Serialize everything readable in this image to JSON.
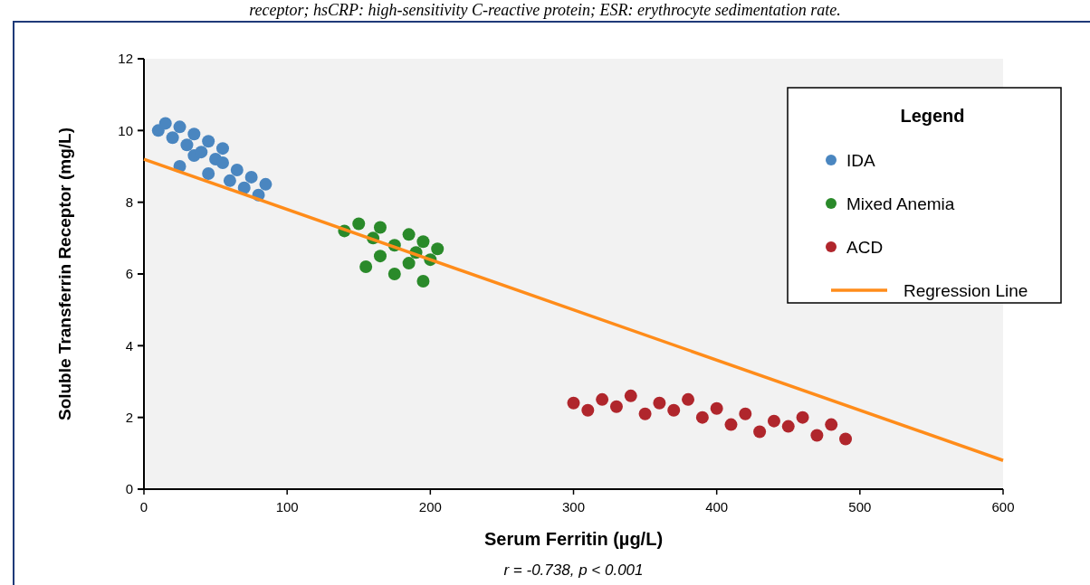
{
  "chart_data": {
    "type": "scatter",
    "xlabel": "Serum Ferritin (µg/L)",
    "ylabel": "Soluble Transferrin Receptor (mg/L)",
    "legend_title": "Legend",
    "annotations": [
      "r = -0.738, p < 0.001",
      "receptor; hsCRP: high-sensitivity C-reactive protein; ESR: erythrocyte sedimentation rate."
    ],
    "xlim": [
      0,
      600
    ],
    "xticks": [
      0,
      100,
      200,
      300,
      400,
      500,
      600
    ],
    "ylim": [
      0,
      12
    ],
    "yticks": [
      0,
      2,
      4,
      6,
      8,
      10,
      12
    ],
    "grid": false,
    "legend": "top right",
    "marker": "circle",
    "series": [
      {
        "name": "IDA",
        "color": "#4a86c0",
        "x": [
          10,
          15,
          20,
          25,
          30,
          35,
          35,
          40,
          45,
          50,
          55,
          55,
          25,
          45,
          60,
          65,
          70,
          75,
          80,
          85
        ],
        "values": [
          10.0,
          10.2,
          9.8,
          10.1,
          9.6,
          9.9,
          9.3,
          9.4,
          9.7,
          9.2,
          9.5,
          9.1,
          9.0,
          8.8,
          8.6,
          8.9,
          8.4,
          8.7,
          8.2,
          8.5
        ]
      },
      {
        "name": "Mixed Anemia",
        "color": "#2a8a2a",
        "x": [
          140,
          150,
          160,
          165,
          155,
          165,
          175,
          175,
          185,
          185,
          190,
          195,
          195,
          200,
          205
        ],
        "values": [
          7.2,
          7.4,
          7.0,
          7.3,
          6.2,
          6.5,
          6.8,
          6.0,
          7.1,
          6.3,
          6.6,
          6.9,
          5.8,
          6.4,
          6.7
        ]
      },
      {
        "name": "ACD",
        "color": "#b0262c",
        "x": [
          300,
          310,
          320,
          330,
          340,
          350,
          360,
          370,
          380,
          390,
          400,
          410,
          420,
          430,
          440,
          450,
          460,
          470,
          480,
          490
        ],
        "values": [
          2.4,
          2.2,
          2.5,
          2.3,
          2.6,
          2.1,
          2.4,
          2.2,
          2.5,
          2.0,
          2.25,
          1.8,
          2.1,
          1.6,
          1.9,
          1.75,
          2.0,
          1.5,
          1.8,
          1.4
        ]
      },
      {
        "name": "Regression Line",
        "type": "line",
        "color": "#ff8c1a",
        "line_style": "solid",
        "marker": "none",
        "x": [
          0,
          600
        ],
        "values": [
          9.2,
          0.8
        ]
      }
    ]
  }
}
